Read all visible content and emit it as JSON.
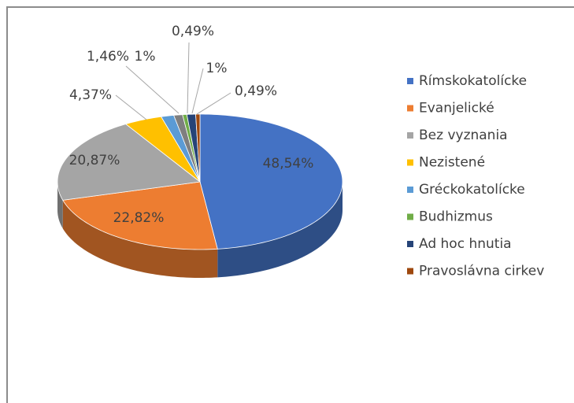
{
  "chart_data": {
    "type": "pie3d",
    "categories": [
      "Rímskokatolícke",
      "Evanjelické",
      "Bez vyznania",
      "Nezistené",
      "Gréckokatolícke",
      null,
      "Budhizmus",
      "Ad hoc hnutia",
      "Pravoslávna cirkev"
    ],
    "values": [
      48.54,
      22.82,
      20.87,
      4.37,
      1.46,
      1,
      0.49,
      1,
      0.49
    ],
    "value_labels": [
      "48,54%",
      "22,82%",
      "20,87%",
      "4,37%",
      "1,46%",
      "1%",
      "0,49%",
      "1%",
      "0,49%"
    ],
    "colors": [
      "#4472c4",
      "#ed7d31",
      "#a5a5a5",
      "#ffc000",
      "#5b9bd5",
      "#7f7f7f",
      "#70ad47",
      "#264478",
      "#9e480e"
    ],
    "legend": "right"
  }
}
